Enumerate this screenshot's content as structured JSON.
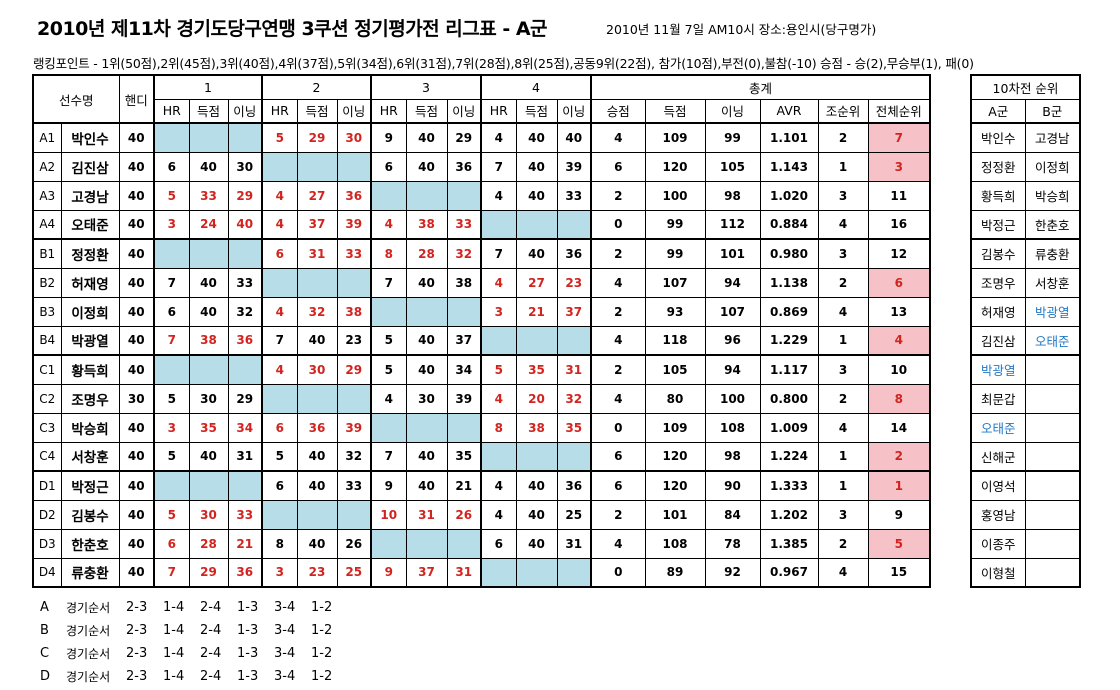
{
  "title": "2010년 제11차 경기도당구연맹 3쿠션 정기평가전 리그표 - A군",
  "date_place": "2010년 11월 7일 AM10시  장소:용인시(당구명가)",
  "ranking_points": "랭킹포인트 - 1위(50점),2위(45점),3위(40점),4위(37점),5위(34점),6위(31점),7위(28점),8위(25점),공동9위(22점), 참가(10점),부전(0),불참(-10)  승점 - 승(2),무승부(1), 패(0)",
  "headers": {
    "player": "선수명",
    "handicap": "핸디",
    "games": [
      "1",
      "2",
      "3",
      "4"
    ],
    "sub": [
      "HR",
      "득점",
      "이닝"
    ],
    "total": "총계",
    "total_sub": [
      "승점",
      "득점",
      "이닝",
      "AVR",
      "조순위",
      "전체순위"
    ]
  },
  "players": [
    {
      "code": "A1",
      "name": "박인수",
      "hd": "40",
      "g": [
        null,
        [
          "5",
          "29",
          "30",
          true
        ],
        [
          "9",
          "40",
          "29",
          false
        ],
        [
          "4",
          "40",
          "40",
          false
        ]
      ],
      "t": [
        "4",
        "109",
        "99",
        "1.101",
        "2",
        "7"
      ],
      "pink": true
    },
    {
      "code": "A2",
      "name": "김진삼",
      "hd": "40",
      "g": [
        [
          "6",
          "40",
          "30",
          false
        ],
        null,
        [
          "6",
          "40",
          "36",
          false
        ],
        [
          "7",
          "40",
          "39",
          false
        ]
      ],
      "t": [
        "6",
        "120",
        "105",
        "1.143",
        "1",
        "3"
      ],
      "pink": true
    },
    {
      "code": "A3",
      "name": "고경남",
      "hd": "40",
      "g": [
        [
          "5",
          "33",
          "29",
          true
        ],
        [
          "4",
          "27",
          "36",
          true
        ],
        null,
        [
          "4",
          "40",
          "33",
          false
        ]
      ],
      "t": [
        "2",
        "100",
        "98",
        "1.020",
        "3",
        "11"
      ],
      "pink": false
    },
    {
      "code": "A4",
      "name": "오태준",
      "hd": "40",
      "g": [
        [
          "3",
          "24",
          "40",
          true
        ],
        [
          "4",
          "37",
          "39",
          true
        ],
        [
          "4",
          "38",
          "33",
          true
        ],
        null
      ],
      "t": [
        "0",
        "99",
        "112",
        "0.884",
        "4",
        "16"
      ],
      "pink": false
    },
    {
      "code": "B1",
      "name": "정정환",
      "hd": "40",
      "g": [
        null,
        [
          "6",
          "31",
          "33",
          true
        ],
        [
          "8",
          "28",
          "32",
          true
        ],
        [
          "7",
          "40",
          "36",
          false
        ]
      ],
      "t": [
        "2",
        "99",
        "101",
        "0.980",
        "3",
        "12"
      ],
      "pink": false
    },
    {
      "code": "B2",
      "name": "허재영",
      "hd": "40",
      "g": [
        [
          "7",
          "40",
          "33",
          false
        ],
        null,
        [
          "7",
          "40",
          "38",
          false
        ],
        [
          "4",
          "27",
          "23",
          true
        ]
      ],
      "t": [
        "4",
        "107",
        "94",
        "1.138",
        "2",
        "6"
      ],
      "pink": true
    },
    {
      "code": "B3",
      "name": "이정희",
      "hd": "40",
      "g": [
        [
          "6",
          "40",
          "32",
          false
        ],
        [
          "4",
          "32",
          "38",
          true
        ],
        null,
        [
          "3",
          "21",
          "37",
          true
        ]
      ],
      "t": [
        "2",
        "93",
        "107",
        "0.869",
        "4",
        "13"
      ],
      "pink": false
    },
    {
      "code": "B4",
      "name": "박광열",
      "hd": "40",
      "g": [
        [
          "7",
          "38",
          "36",
          true
        ],
        [
          "7",
          "40",
          "23",
          false
        ],
        [
          "5",
          "40",
          "37",
          false
        ],
        null
      ],
      "t": [
        "4",
        "118",
        "96",
        "1.229",
        "1",
        "4"
      ],
      "pink": true
    },
    {
      "code": "C1",
      "name": "황득희",
      "hd": "40",
      "g": [
        null,
        [
          "4",
          "30",
          "29",
          true
        ],
        [
          "5",
          "40",
          "34",
          false
        ],
        [
          "5",
          "35",
          "31",
          true
        ]
      ],
      "t": [
        "2",
        "105",
        "94",
        "1.117",
        "3",
        "10"
      ],
      "pink": false
    },
    {
      "code": "C2",
      "name": "조명우",
      "hd": "30",
      "g": [
        [
          "5",
          "30",
          "29",
          false
        ],
        null,
        [
          "4",
          "30",
          "39",
          false
        ],
        [
          "4",
          "20",
          "32",
          true
        ]
      ],
      "t": [
        "4",
        "80",
        "100",
        "0.800",
        "2",
        "8"
      ],
      "pink": true
    },
    {
      "code": "C3",
      "name": "박승희",
      "hd": "40",
      "g": [
        [
          "3",
          "35",
          "34",
          true
        ],
        [
          "6",
          "36",
          "39",
          true
        ],
        null,
        [
          "8",
          "38",
          "35",
          true
        ]
      ],
      "t": [
        "0",
        "109",
        "108",
        "1.009",
        "4",
        "14"
      ],
      "pink": false
    },
    {
      "code": "C4",
      "name": "서창훈",
      "hd": "40",
      "g": [
        [
          "5",
          "40",
          "31",
          false
        ],
        [
          "5",
          "40",
          "32",
          false
        ],
        [
          "7",
          "40",
          "35",
          false
        ],
        null
      ],
      "t": [
        "6",
        "120",
        "98",
        "1.224",
        "1",
        "2"
      ],
      "pink": true
    },
    {
      "code": "D1",
      "name": "박정근",
      "hd": "40",
      "g": [
        null,
        [
          "6",
          "40",
          "33",
          false
        ],
        [
          "9",
          "40",
          "21",
          false
        ],
        [
          "4",
          "40",
          "36",
          false
        ]
      ],
      "t": [
        "6",
        "120",
        "90",
        "1.333",
        "1",
        "1"
      ],
      "pink": true
    },
    {
      "code": "D2",
      "name": "김봉수",
      "hd": "40",
      "g": [
        [
          "5",
          "30",
          "33",
          true
        ],
        null,
        [
          "10",
          "31",
          "26",
          true
        ],
        [
          "4",
          "40",
          "25",
          false
        ]
      ],
      "t": [
        "2",
        "101",
        "84",
        "1.202",
        "3",
        "9"
      ],
      "pink": false
    },
    {
      "code": "D3",
      "name": "한춘호",
      "hd": "40",
      "g": [
        [
          "6",
          "28",
          "21",
          true
        ],
        [
          "8",
          "40",
          "26",
          false
        ],
        null,
        [
          "6",
          "40",
          "31",
          false
        ]
      ],
      "t": [
        "4",
        "108",
        "78",
        "1.385",
        "2",
        "5"
      ],
      "pink": true
    },
    {
      "code": "D4",
      "name": "류충환",
      "hd": "40",
      "g": [
        [
          "7",
          "29",
          "36",
          true
        ],
        [
          "3",
          "23",
          "25",
          true
        ],
        [
          "9",
          "37",
          "31",
          true
        ],
        null
      ],
      "t": [
        "0",
        "89",
        "92",
        "0.967",
        "4",
        "15"
      ],
      "pink": false
    }
  ],
  "side": {
    "title": "10차전 순위",
    "col_a": "A군",
    "col_b": "B군",
    "rows": [
      {
        "a": "박인수",
        "a_blue": false,
        "b": "고경남",
        "b_blue": false
      },
      {
        "a": "정정환",
        "a_blue": false,
        "b": "이정희",
        "b_blue": false
      },
      {
        "a": "황득희",
        "a_blue": false,
        "b": "박승희",
        "b_blue": false
      },
      {
        "a": "박정근",
        "a_blue": false,
        "b": "한춘호",
        "b_blue": false
      },
      {
        "a": "김봉수",
        "a_blue": false,
        "b": "류충환",
        "b_blue": false
      },
      {
        "a": "조명우",
        "a_blue": false,
        "b": "서창훈",
        "b_blue": false
      },
      {
        "a": "허재영",
        "a_blue": false,
        "b": "박광열",
        "b_blue": true
      },
      {
        "a": "김진삼",
        "a_blue": false,
        "b": "오태준",
        "b_blue": true
      },
      {
        "a": "박광열",
        "a_blue": true,
        "b": "",
        "b_blue": false
      },
      {
        "a": "최문갑",
        "a_blue": false,
        "b": "",
        "b_blue": false
      },
      {
        "a": "오태준",
        "a_blue": true,
        "b": "",
        "b_blue": false
      },
      {
        "a": "신해군",
        "a_blue": false,
        "b": "",
        "b_blue": false
      },
      {
        "a": "이영석",
        "a_blue": false,
        "b": "",
        "b_blue": false
      },
      {
        "a": "홍영남",
        "a_blue": false,
        "b": "",
        "b_blue": false
      },
      {
        "a": "이종주",
        "a_blue": false,
        "b": "",
        "b_blue": false
      },
      {
        "a": "이형철",
        "a_blue": false,
        "b": "",
        "b_blue": false
      }
    ]
  },
  "match_order": [
    {
      "group": "A",
      "label": "경기순서",
      "pairs": [
        "2-3",
        "1-4",
        "2-4",
        "1-3",
        "3-4",
        "1-2"
      ]
    },
    {
      "group": "B",
      "label": "경기순서",
      "pairs": [
        "2-3",
        "1-4",
        "2-4",
        "1-3",
        "3-4",
        "1-2"
      ]
    },
    {
      "group": "C",
      "label": "경기순서",
      "pairs": [
        "2-3",
        "1-4",
        "2-4",
        "1-3",
        "3-4",
        "1-2"
      ]
    },
    {
      "group": "D",
      "label": "경기순서",
      "pairs": [
        "2-3",
        "1-4",
        "2-4",
        "1-3",
        "3-4",
        "1-2"
      ]
    }
  ],
  "colors": {
    "red": "#d2241f",
    "blank": "#b7dde8",
    "pink": "#f6c2c8",
    "blue": "#1f78c8"
  }
}
